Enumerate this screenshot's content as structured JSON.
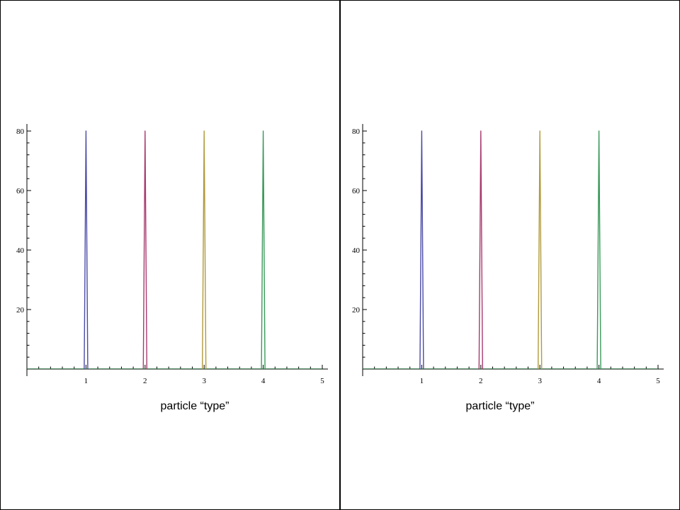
{
  "chart_data": [
    {
      "type": "line",
      "title": "",
      "xlabel": "particle “type”",
      "ylabel": "",
      "xlim": [
        0,
        5
      ],
      "ylim": [
        0,
        80
      ],
      "x_ticks": [
        "1",
        "2",
        "3",
        "4",
        "5"
      ],
      "y_ticks": [
        "20",
        "40",
        "60",
        "80"
      ],
      "grid": false,
      "series": [
        {
          "x": [
            0.97,
            1.0,
            1.03
          ],
          "y": [
            0,
            80,
            0
          ],
          "color": "#4a4aa8"
        },
        {
          "x": [
            1.97,
            2.0,
            2.03
          ],
          "y": [
            0,
            80,
            0
          ],
          "color": "#a83a6e"
        },
        {
          "x": [
            2.97,
            3.0,
            3.03
          ],
          "y": [
            0,
            80,
            0
          ],
          "color": "#b09a3a"
        },
        {
          "x": [
            3.97,
            4.0,
            4.03
          ],
          "y": [
            0,
            80,
            0
          ],
          "color": "#3a9a5a"
        }
      ]
    },
    {
      "type": "line",
      "title": "",
      "xlabel": "particle “type”",
      "ylabel": "",
      "xlim": [
        0,
        5
      ],
      "ylim": [
        0,
        80
      ],
      "x_ticks": [
        "1",
        "2",
        "3",
        "4",
        "5"
      ],
      "y_ticks": [
        "20",
        "40",
        "60",
        "80"
      ],
      "grid": false,
      "series": [
        {
          "x": [
            0.97,
            1.0,
            1.03
          ],
          "y": [
            0,
            80,
            0
          ],
          "color": "#4a4aa8"
        },
        {
          "x": [
            1.97,
            2.0,
            2.03
          ],
          "y": [
            0,
            80,
            0
          ],
          "color": "#a83a6e"
        },
        {
          "x": [
            2.97,
            3.0,
            3.03
          ],
          "y": [
            0,
            80,
            0
          ],
          "color": "#b09a3a"
        },
        {
          "x": [
            3.97,
            4.0,
            4.03
          ],
          "y": [
            0,
            80,
            0
          ],
          "color": "#3a9a5a"
        }
      ]
    }
  ]
}
